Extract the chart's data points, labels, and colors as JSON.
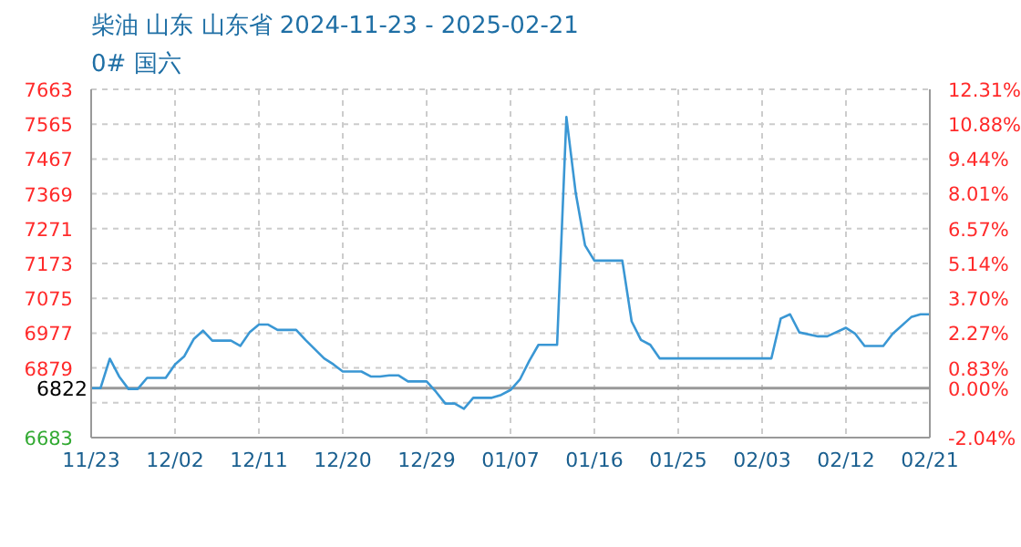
{
  "chart_data": {
    "type": "line",
    "title": "柴油 山东 山东省 2024-11-23 - 2025-02-21",
    "subtitle": "0# 国六",
    "x": [
      "2024-11-23",
      "2024-11-24",
      "2024-11-25",
      "2024-11-26",
      "2024-11-27",
      "2024-11-28",
      "2024-11-29",
      "2024-12-01",
      "2024-12-02",
      "2024-12-03",
      "2024-12-04",
      "2024-12-05",
      "2024-12-06",
      "2024-12-08",
      "2024-12-09",
      "2024-12-10",
      "2024-12-11",
      "2024-12-12",
      "2024-12-13",
      "2024-12-15",
      "2024-12-16",
      "2024-12-18",
      "2024-12-19",
      "2024-12-20",
      "2024-12-22",
      "2024-12-23",
      "2024-12-24",
      "2024-12-25",
      "2024-12-26",
      "2024-12-27",
      "2024-12-29",
      "2024-12-30",
      "2024-12-31",
      "2025-01-01",
      "2025-01-02",
      "2025-01-03",
      "2025-01-05",
      "2025-01-06",
      "2025-01-07",
      "2025-01-08",
      "2025-01-09",
      "2025-01-10",
      "2025-01-12",
      "2025-01-13",
      "2025-01-14",
      "2025-01-15",
      "2025-01-16",
      "2025-01-19",
      "2025-01-20",
      "2025-01-21",
      "2025-01-22",
      "2025-01-23",
      "2025-02-04",
      "2025-02-05",
      "2025-02-06",
      "2025-02-07",
      "2025-02-09",
      "2025-02-10",
      "2025-02-12",
      "2025-02-13",
      "2025-02-14",
      "2025-02-16",
      "2025-02-17",
      "2025-02-19",
      "2025-02-20",
      "2025-02-21"
    ],
    "series": [
      {
        "color": "#3a97d4",
        "values": [
          6822,
          6822,
          6905,
          6855,
          6820,
          6820,
          6851,
          6851,
          6889,
          6912,
          6960,
          6984,
          6956,
          6956,
          6941,
          6979,
          7001,
          7001,
          6986,
          6986,
          6958,
          6906,
          6889,
          6869,
          6869,
          6855,
          6855,
          6858,
          6858,
          6841,
          6841,
          6812,
          6779,
          6779,
          6764,
          6795,
          6795,
          6803,
          6817,
          6846,
          6898,
          6944,
          6944,
          7585,
          7371,
          7224,
          7181,
          7181,
          7010,
          6958,
          6944,
          6906,
          6906,
          7018,
          7030,
          6979,
          6968,
          6968,
          6992,
          6975,
          6941,
          6941,
          6975,
          7022,
          7030,
          7030
        ]
      }
    ],
    "xlim": [
      "2024-11-23",
      "2025-02-21"
    ],
    "xticks": [
      {
        "value": "2024-11-23",
        "label": "11/23"
      },
      {
        "value": "2024-12-02",
        "label": "12/02"
      },
      {
        "value": "2024-12-11",
        "label": "12/11"
      },
      {
        "value": "2024-12-20",
        "label": "12/20"
      },
      {
        "value": "2024-12-29",
        "label": "12/29"
      },
      {
        "value": "2025-01-07",
        "label": "01/07"
      },
      {
        "value": "2025-01-16",
        "label": "01/16"
      },
      {
        "value": "2025-01-25",
        "label": "01/25"
      },
      {
        "value": "2025-02-03",
        "label": "02/03"
      },
      {
        "value": "2025-02-12",
        "label": "02/12"
      },
      {
        "value": "2025-02-21",
        "label": "02/21"
      }
    ],
    "ylim": [
      6683,
      7663
    ],
    "yticks": [
      6683,
      {
        "value": 6781,
        "label": null
      },
      6879,
      6977,
      7075,
      7173,
      7271,
      7369,
      7467,
      7565,
      7663
    ],
    "y2lim": [
      -2.04,
      12.31
    ],
    "y2ticks": [
      {
        "value": -2.04,
        "label": "-2.04%"
      },
      {
        "value": -0.6,
        "label": null
      },
      {
        "value": 0,
        "label": "0.00%"
      },
      {
        "value": 0.83,
        "label": "0.83%"
      },
      {
        "value": 2.27,
        "label": "2.27%"
      },
      {
        "value": 3.7,
        "label": "3.70%"
      },
      {
        "value": 5.14,
        "label": "5.14%"
      },
      {
        "value": 6.57,
        "label": "6.57%"
      },
      {
        "value": 8.01,
        "label": "8.01%"
      },
      {
        "value": 9.44,
        "label": "9.44%"
      },
      {
        "value": 10.88,
        "label": "10.88%"
      },
      {
        "value": 12.31,
        "label": "12.31%"
      }
    ],
    "ref_lines": [
      {
        "axis": "y",
        "value": 6822,
        "label": "6822",
        "color": "#999999"
      }
    ],
    "grid": true,
    "legend": false,
    "marker": "none",
    "line_style": "solid"
  }
}
